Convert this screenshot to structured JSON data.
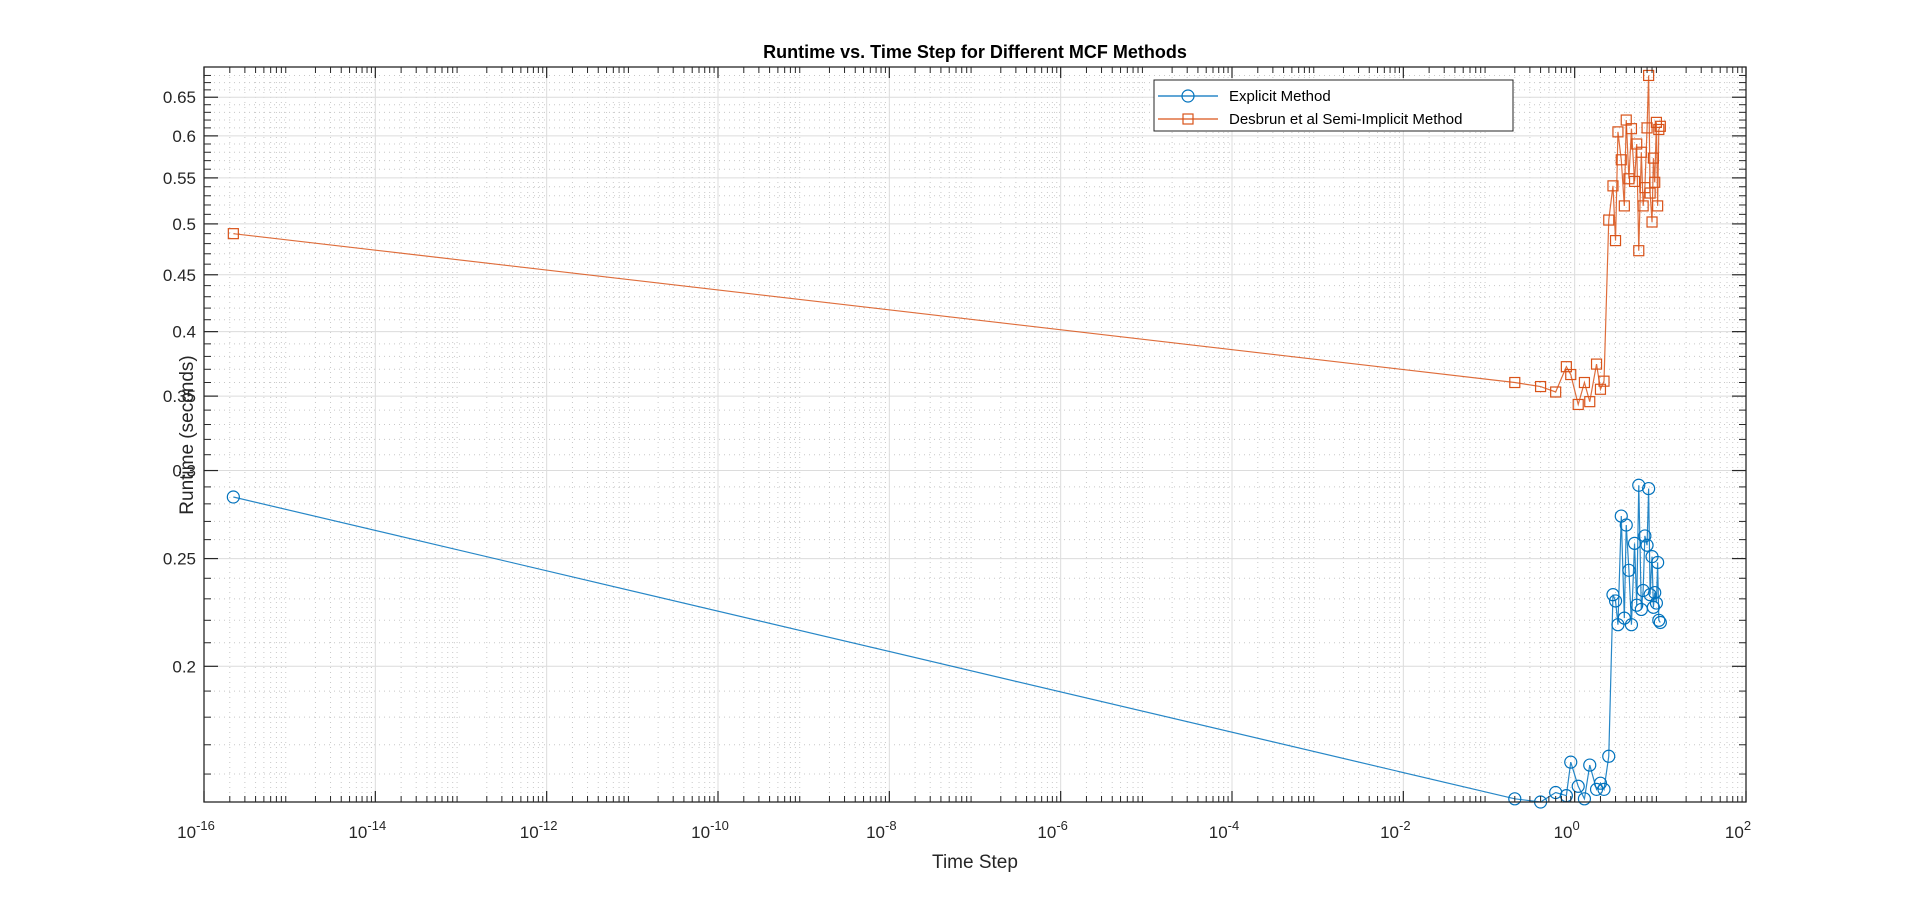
{
  "figure": {
    "title": "Runtime vs. Time Step for Different MCF Methods",
    "xlabel": "Time Step",
    "ylabel": "Runtime (seconds)",
    "legend": [
      {
        "label": "Explicit Method",
        "color": "#0072BD",
        "marker": "circle"
      },
      {
        "label": "Desbrun et al Semi-Implicit Method",
        "color": "#D95319",
        "marker": "square"
      }
    ],
    "x_tick_labels": [
      {
        "base": "10",
        "exp": "-16"
      },
      {
        "base": "10",
        "exp": "-14"
      },
      {
        "base": "10",
        "exp": "-12"
      },
      {
        "base": "10",
        "exp": "-10"
      },
      {
        "base": "10",
        "exp": "-8"
      },
      {
        "base": "10",
        "exp": "-6"
      },
      {
        "base": "10",
        "exp": "-4"
      },
      {
        "base": "10",
        "exp": "-2"
      },
      {
        "base": "10",
        "exp": "0"
      },
      {
        "base": "10",
        "exp": "2"
      }
    ],
    "y_tick_labels": [
      "0.2",
      "0.25",
      "0.3",
      "0.35",
      "0.4",
      "0.45",
      "0.5",
      "0.55",
      "0.6",
      "0.65"
    ]
  },
  "chart_data": {
    "type": "line",
    "title": "Runtime vs. Time Step for Different MCF Methods",
    "xlabel": "Time Step",
    "ylabel": "Runtime (seconds)",
    "xscale": "log",
    "yscale": "log",
    "xlim": [
      1e-16,
      100
    ],
    "ylim": [
      0.151,
      0.692
    ],
    "grid": true,
    "minor_grid": true,
    "legend_position": "top-right (inside)",
    "x_ticks": [
      1e-16,
      1e-14,
      1e-12,
      1e-10,
      1e-08,
      1e-06,
      0.0001,
      0.01,
      1,
      100
    ],
    "y_ticks": [
      0.2,
      0.25,
      0.3,
      0.35,
      0.4,
      0.45,
      0.5,
      0.55,
      0.6,
      0.65
    ],
    "series": [
      {
        "name": "Explicit Method",
        "color": "#0072BD",
        "marker": "o",
        "x": [
          2.2e-16,
          0.2,
          0.4,
          0.6,
          0.8,
          0.9,
          1.1,
          1.3,
          1.5,
          1.8,
          2.0,
          2.2,
          2.5,
          2.8,
          3.0,
          3.2,
          3.5,
          3.8,
          4.0,
          4.3,
          4.6,
          5.0,
          5.3,
          5.6,
          6.0,
          6.3,
          6.6,
          7.0,
          7.3,
          7.6,
          8.0,
          8.3,
          8.6,
          9.0,
          9.3,
          9.6,
          10.0
        ],
        "y": [
          0.284,
          0.152,
          0.151,
          0.154,
          0.153,
          0.164,
          0.156,
          0.152,
          0.163,
          0.155,
          0.157,
          0.155,
          0.166,
          0.232,
          0.229,
          0.218,
          0.273,
          0.221,
          0.268,
          0.244,
          0.218,
          0.258,
          0.227,
          0.291,
          0.225,
          0.234,
          0.262,
          0.257,
          0.289,
          0.232,
          0.251,
          0.226,
          0.233,
          0.228,
          0.248,
          0.22,
          0.219
        ]
      },
      {
        "name": "Desbrun et al Semi-Implicit Method",
        "color": "#D95319",
        "marker": "s",
        "x": [
          2.2e-16,
          0.2,
          0.4,
          0.6,
          0.8,
          0.9,
          1.1,
          1.3,
          1.5,
          1.8,
          2.0,
          2.2,
          2.5,
          2.8,
          3.0,
          3.2,
          3.5,
          3.8,
          4.0,
          4.3,
          4.6,
          5.0,
          5.3,
          5.6,
          6.0,
          6.3,
          6.6,
          7.0,
          7.3,
          7.6,
          8.0,
          8.3,
          8.6,
          9.0,
          9.3,
          9.6,
          10.0
        ],
        "y": [
          0.49,
          0.36,
          0.357,
          0.353,
          0.372,
          0.366,
          0.344,
          0.36,
          0.346,
          0.374,
          0.355,
          0.361,
          0.504,
          0.541,
          0.483,
          0.605,
          0.571,
          0.519,
          0.62,
          0.549,
          0.609,
          0.546,
          0.59,
          0.473,
          0.58,
          0.519,
          0.539,
          0.61,
          0.68,
          0.533,
          0.502,
          0.573,
          0.545,
          0.617,
          0.519,
          0.608,
          0.612
        ]
      }
    ]
  }
}
